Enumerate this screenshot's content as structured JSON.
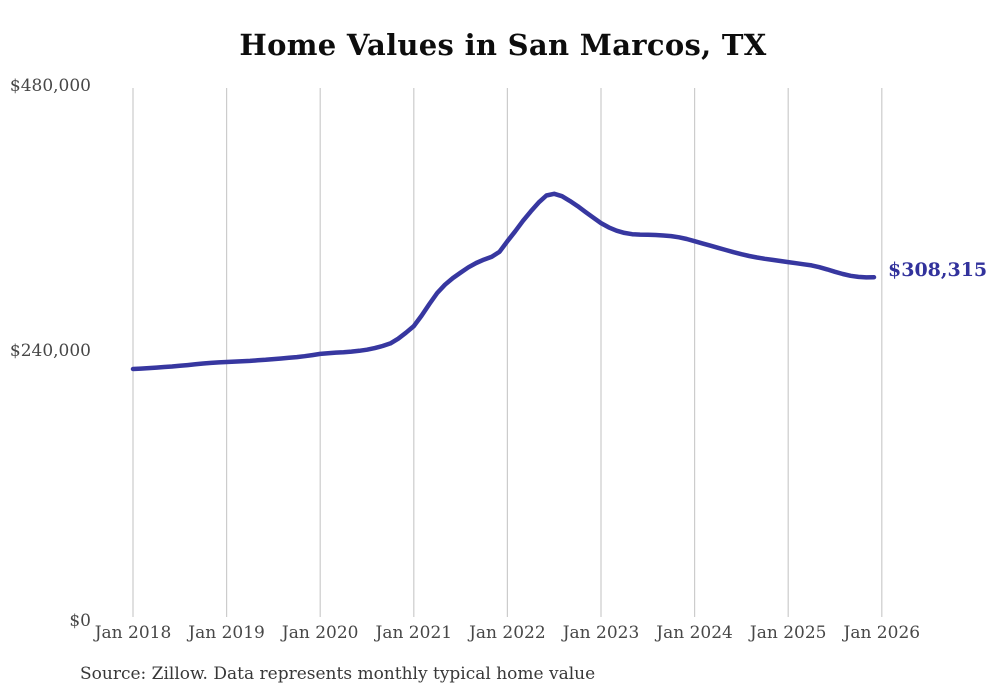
{
  "title": "Home Values in San Marcos, TX",
  "end_label": "$308,315",
  "source": "Source: Zillow. Data represents monthly typical home value",
  "colors": {
    "line": "#3737a0",
    "end_label": "#32329c",
    "grid": "#cccccc",
    "axis_text": "#474747",
    "title_text": "#0d0d0d",
    "source_text": "#383838",
    "background": "#ffffff"
  },
  "y_axis": {
    "ticks": [
      {
        "label": "$480,000",
        "value": 480000
      },
      {
        "label": "$240,000",
        "value": 240000
      },
      {
        "label": "$0",
        "value": 0
      }
    ]
  },
  "x_axis": {
    "ticks": [
      "Jan 2018",
      "Jan 2019",
      "Jan 2020",
      "Jan 2021",
      "Jan 2022",
      "Jan 2023",
      "Jan 2024",
      "Jan 2025",
      "Jan 2026"
    ]
  },
  "chart_data": {
    "type": "line",
    "title": "Home Values in San Marcos, TX",
    "unit": "USD",
    "frequency": "monthly",
    "x_start": "Jan 2018",
    "x_end": "Jan 2026",
    "ylim": [
      0,
      480000
    ],
    "grid": "vertical-only",
    "x_tick_labels": [
      "Jan 2018",
      "Jan 2019",
      "Jan 2020",
      "Jan 2021",
      "Jan 2022",
      "Jan 2023",
      "Jan 2024",
      "Jan 2025",
      "Jan 2026"
    ],
    "y_tick_labels": [
      "$0",
      "$240,000",
      "$480,000"
    ],
    "final_value": 308315,
    "peak": {
      "month": "Jul 2022",
      "value": 384000
    },
    "values": [
      225000,
      225400,
      225800,
      226300,
      226800,
      227300,
      227900,
      228600,
      229300,
      230000,
      230600,
      231000,
      231400,
      231700,
      232000,
      232400,
      232900,
      233400,
      234000,
      234600,
      235200,
      235800,
      236600,
      237600,
      238700,
      239400,
      239900,
      240300,
      240800,
      241500,
      242500,
      244000,
      245900,
      248300,
      252500,
      258000,
      264000,
      273500,
      284000,
      294000,
      301500,
      307500,
      312500,
      317300,
      321200,
      324300,
      326800,
      331500,
      341000,
      350000,
      359500,
      368000,
      376000,
      382500,
      384000,
      381800,
      377600,
      372800,
      367600,
      362400,
      357400,
      353500,
      350500,
      348500,
      347300,
      347000,
      346900,
      346600,
      346200,
      345600,
      344500,
      343000,
      341000,
      339000,
      337000,
      335000,
      333000,
      331000,
      329200,
      327600,
      326200,
      325000,
      324000,
      323000,
      322000,
      321000,
      320000,
      319000,
      317400,
      315400,
      313200,
      311200,
      309600,
      308600,
      308100,
      308315
    ]
  }
}
